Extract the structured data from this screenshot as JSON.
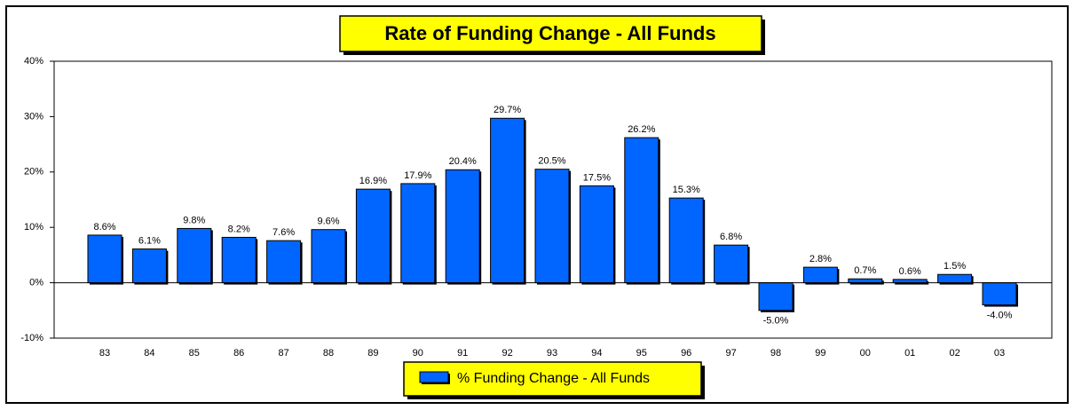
{
  "chart_data": {
    "type": "bar",
    "title": "Rate of Funding Change - All Funds",
    "categories": [
      "83",
      "84",
      "85",
      "86",
      "87",
      "88",
      "89",
      "90",
      "91",
      "92",
      "93",
      "94",
      "95",
      "96",
      "97",
      "98",
      "99",
      "00",
      "01",
      "02",
      "03"
    ],
    "series": [
      {
        "name": "% Funding Change - All Funds",
        "color": "#0066ff",
        "values": [
          8.6,
          6.1,
          9.8,
          8.2,
          7.6,
          9.6,
          16.9,
          17.9,
          20.4,
          29.7,
          20.5,
          17.5,
          26.2,
          15.3,
          6.8,
          -5.0,
          2.8,
          0.7,
          0.6,
          1.5,
          -4.0
        ],
        "value_labels": [
          "8.6%",
          "6.1%",
          "9.8%",
          "8.2%",
          "7.6%",
          "9.6%",
          "16.9%",
          "17.9%",
          "20.4%",
          "29.7%",
          "20.5%",
          "17.5%",
          "26.2%",
          "15.3%",
          "6.8%",
          "-5.0%",
          "2.8%",
          "0.7%",
          "0.6%",
          "1.5%",
          "-4.0%"
        ]
      }
    ],
    "ylim": [
      -10,
      40
    ],
    "yticks": [
      {
        "value": -10,
        "label": "-10%"
      },
      {
        "value": 0,
        "label": "0%"
      },
      {
        "value": 10,
        "label": "10%"
      },
      {
        "value": 20,
        "label": "20%"
      },
      {
        "value": 30,
        "label": "30%"
      },
      {
        "value": 40,
        "label": "40%"
      }
    ],
    "grid": false,
    "legend": "bottom"
  }
}
